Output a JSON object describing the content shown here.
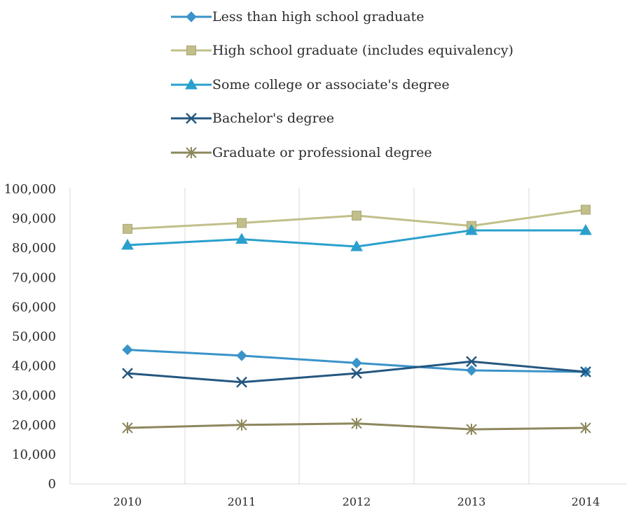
{
  "chart_data": {
    "type": "line",
    "title": "",
    "xlabel": "",
    "ylabel": "",
    "categories": [
      "2010",
      "2011",
      "2012",
      "2013",
      "2014"
    ],
    "ylim": [
      0,
      100000
    ],
    "yticks": [
      0,
      10000,
      20000,
      30000,
      40000,
      50000,
      60000,
      70000,
      80000,
      90000,
      100000
    ],
    "ytick_labels": [
      "0",
      "10,000",
      "20,000",
      "30,000",
      "40,000",
      "50,000",
      "60,000",
      "70,000",
      "80,000",
      "90,000",
      "100,000"
    ],
    "grid": "vertical",
    "legend_position": "top",
    "series": [
      {
        "name": "Less than high school graduate",
        "color": "#3a93c9",
        "marker": "diamond",
        "values": [
          45500,
          43500,
          41000,
          38500,
          38000
        ]
      },
      {
        "name": "High school graduate (includes equivalency)",
        "color": "#c2bf8a",
        "marker": "square",
        "values": [
          86500,
          88500,
          91000,
          87500,
          93000
        ]
      },
      {
        "name": "Some college or associate's degree",
        "color": "#2aa0cc",
        "marker": "triangle",
        "values": [
          81000,
          83000,
          80500,
          86000,
          86000
        ]
      },
      {
        "name": "Bachelor's degree",
        "color": "#25577f",
        "marker": "x",
        "values": [
          37500,
          34500,
          37500,
          41500,
          38000
        ]
      },
      {
        "name": "Graduate or professional degree",
        "color": "#8d875d",
        "marker": "asterisk",
        "values": [
          19000,
          20000,
          20500,
          18500,
          19000
        ]
      }
    ]
  }
}
